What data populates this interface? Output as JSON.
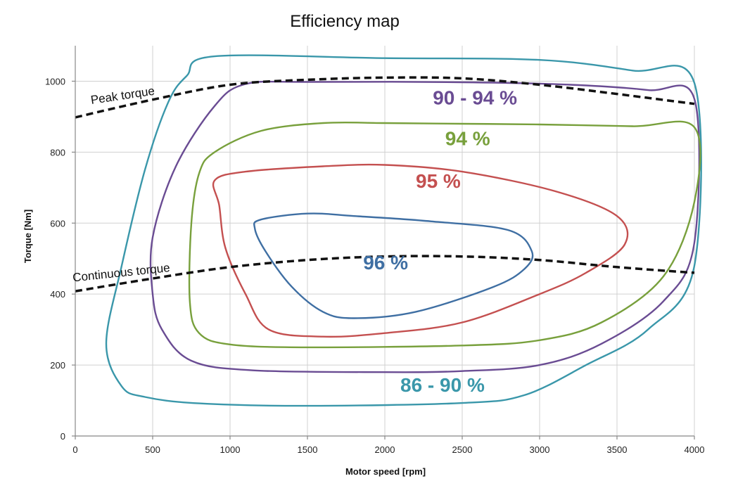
{
  "chart_data": {
    "type": "line",
    "title": "Efficiency map",
    "xlabel": "Motor speed [rpm]",
    "ylabel": "Torque [Nm]",
    "xlim": [
      0,
      4000
    ],
    "ylim": [
      0,
      1100
    ],
    "xticks": [
      0,
      500,
      1000,
      1500,
      2000,
      2500,
      3000,
      3500,
      4000
    ],
    "yticks": [
      0,
      200,
      400,
      600,
      800,
      1000
    ],
    "grid": true,
    "torque_curves": [
      {
        "label": "Peak torque",
        "points": [
          [
            0,
            898
          ],
          [
            500,
            948
          ],
          [
            1000,
            990
          ],
          [
            1500,
            1004
          ],
          [
            2000,
            1010
          ],
          [
            2500,
            1008
          ],
          [
            3000,
            990
          ],
          [
            3500,
            964
          ],
          [
            4000,
            936
          ]
        ]
      },
      {
        "label": "Continuous torque",
        "points": [
          [
            0,
            408
          ],
          [
            500,
            444
          ],
          [
            1000,
            476
          ],
          [
            1500,
            496
          ],
          [
            2000,
            506
          ],
          [
            2500,
            506
          ],
          [
            3000,
            496
          ],
          [
            3500,
            476
          ],
          [
            4000,
            460
          ]
        ]
      }
    ],
    "regions": [
      {
        "label": "86 - 90 %",
        "color": "#3a97aa",
        "label_pos": [
          2100,
          125
        ],
        "points": [
          [
            4000,
            995
          ],
          [
            3600,
            1030
          ],
          [
            3000,
            1060
          ],
          [
            2000,
            1065
          ],
          [
            900,
            1070
          ],
          [
            720,
            1015
          ],
          [
            600,
            940
          ],
          [
            450,
            750
          ],
          [
            300,
            480
          ],
          [
            200,
            260
          ],
          [
            300,
            140
          ],
          [
            450,
            110
          ],
          [
            800,
            92
          ],
          [
            1500,
            85
          ],
          [
            2500,
            93
          ],
          [
            2900,
            115
          ],
          [
            3300,
            200
          ],
          [
            3700,
            300
          ],
          [
            4000,
            480
          ],
          [
            4000,
            995
          ]
        ]
      },
      {
        "label": "90 - 94 %",
        "color": "#6a4c93",
        "label_pos": [
          2310,
          935
        ],
        "points": [
          [
            4000,
            950
          ],
          [
            3700,
            975
          ],
          [
            3200,
            990
          ],
          [
            2500,
            997
          ],
          [
            1500,
            998
          ],
          [
            1100,
            992
          ],
          [
            900,
            930
          ],
          [
            650,
            760
          ],
          [
            500,
            560
          ],
          [
            500,
            400
          ],
          [
            560,
            300
          ],
          [
            750,
            212
          ],
          [
            1150,
            185
          ],
          [
            2000,
            180
          ],
          [
            2500,
            183
          ],
          [
            3000,
            200
          ],
          [
            3400,
            260
          ],
          [
            3800,
            380
          ],
          [
            4000,
            545
          ],
          [
            4000,
            950
          ]
        ]
      },
      {
        "label": "94 %",
        "color": "#78a03c",
        "label_pos": [
          2390,
          820
        ],
        "points": [
          [
            4000,
            870
          ],
          [
            3600,
            873
          ],
          [
            3000,
            878
          ],
          [
            2500,
            880
          ],
          [
            2000,
            882
          ],
          [
            1600,
            882
          ],
          [
            1200,
            860
          ],
          [
            900,
            800
          ],
          [
            800,
            740
          ],
          [
            750,
            600
          ],
          [
            740,
            380
          ],
          [
            800,
            290
          ],
          [
            1000,
            258
          ],
          [
            1500,
            250
          ],
          [
            2500,
            255
          ],
          [
            3000,
            270
          ],
          [
            3400,
            320
          ],
          [
            3800,
            450
          ],
          [
            4000,
            660
          ],
          [
            4000,
            870
          ]
        ]
      },
      {
        "label": "95 %",
        "color": "#c45050",
        "label_pos": [
          2200,
          700
        ],
        "points": [
          [
            2000,
            764
          ],
          [
            1600,
            760
          ],
          [
            1100,
            745
          ],
          [
            900,
            720
          ],
          [
            930,
            650
          ],
          [
            970,
            530
          ],
          [
            1100,
            400
          ],
          [
            1250,
            300
          ],
          [
            1600,
            280
          ],
          [
            2000,
            290
          ],
          [
            2500,
            320
          ],
          [
            3000,
            400
          ],
          [
            3300,
            460
          ],
          [
            3550,
            540
          ],
          [
            3500,
            620
          ],
          [
            3100,
            690
          ],
          [
            2500,
            745
          ],
          [
            2000,
            764
          ]
        ]
      },
      {
        "label": "96 %",
        "color": "#3f6fa3",
        "label_pos": [
          1860,
          470
        ],
        "points": [
          [
            1500,
            627
          ],
          [
            1200,
            610
          ],
          [
            1160,
            585
          ],
          [
            1230,
            520
          ],
          [
            1400,
            420
          ],
          [
            1600,
            350
          ],
          [
            1800,
            332
          ],
          [
            2200,
            350
          ],
          [
            2700,
            420
          ],
          [
            2900,
            470
          ],
          [
            2950,
            520
          ],
          [
            2800,
            580
          ],
          [
            2300,
            605
          ],
          [
            1800,
            620
          ],
          [
            1500,
            627
          ]
        ]
      }
    ]
  }
}
